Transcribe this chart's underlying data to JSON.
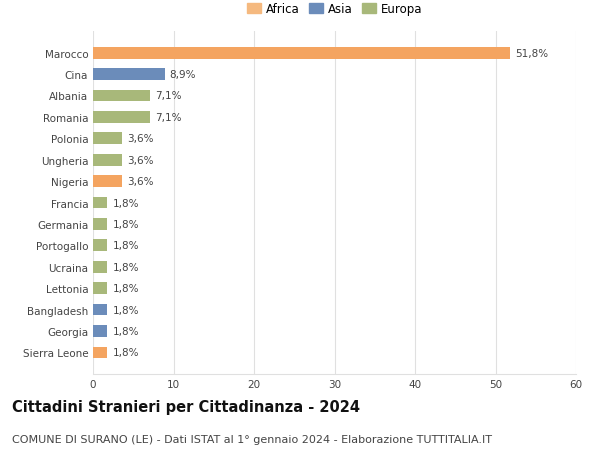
{
  "categories": [
    "Sierra Leone",
    "Georgia",
    "Bangladesh",
    "Lettonia",
    "Ucraina",
    "Portogallo",
    "Germania",
    "Francia",
    "Nigeria",
    "Ungheria",
    "Polonia",
    "Romania",
    "Albania",
    "Cina",
    "Marocco"
  ],
  "values": [
    1.8,
    1.8,
    1.8,
    1.8,
    1.8,
    1.8,
    1.8,
    1.8,
    3.6,
    3.6,
    3.6,
    7.1,
    7.1,
    8.9,
    51.8
  ],
  "labels": [
    "1,8%",
    "1,8%",
    "1,8%",
    "1,8%",
    "1,8%",
    "1,8%",
    "1,8%",
    "1,8%",
    "3,6%",
    "3,6%",
    "3,6%",
    "7,1%",
    "7,1%",
    "8,9%",
    "51,8%"
  ],
  "colors": [
    "#f4a460",
    "#6b8cba",
    "#6b8cba",
    "#a8b87a",
    "#a8b87a",
    "#a8b87a",
    "#a8b87a",
    "#a8b87a",
    "#f4a460",
    "#a8b87a",
    "#a8b87a",
    "#a8b87a",
    "#a8b87a",
    "#6b8cba",
    "#f4a460"
  ],
  "legend": [
    {
      "label": "Africa",
      "color": "#f5b97f"
    },
    {
      "label": "Asia",
      "color": "#6b8cba"
    },
    {
      "label": "Europa",
      "color": "#a8b87a"
    }
  ],
  "xlim": [
    0,
    60
  ],
  "xticks": [
    0,
    10,
    20,
    30,
    40,
    50,
    60
  ],
  "title": "Cittadini Stranieri per Cittadinanza - 2024",
  "subtitle": "COMUNE DI SURANO (LE) - Dati ISTAT al 1° gennaio 2024 - Elaborazione TUTTITALIA.IT",
  "bg_color": "#ffffff",
  "grid_color": "#e0e0e0",
  "bar_height": 0.55,
  "title_fontsize": 10.5,
  "subtitle_fontsize": 8,
  "label_fontsize": 7.5,
  "tick_fontsize": 7.5,
  "legend_fontsize": 8.5
}
